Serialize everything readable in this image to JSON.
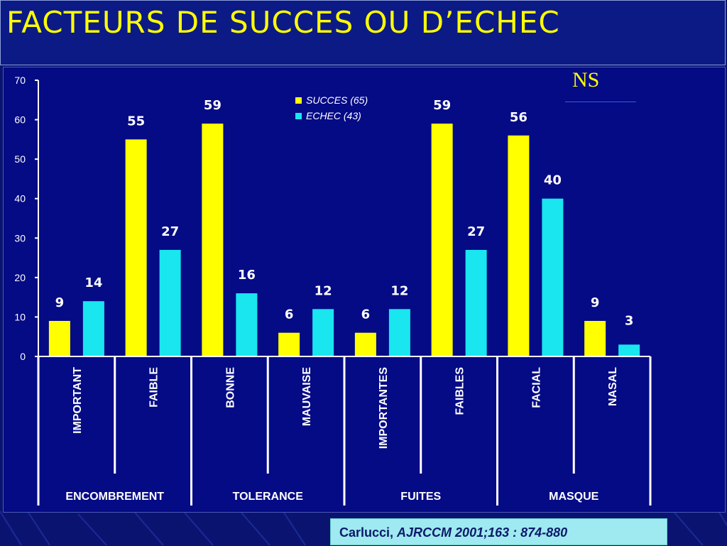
{
  "slide": {
    "title": "FACTEURS DE SUCCES OU D’ECHEC",
    "annotation": "NS",
    "citation_author": "Carlucci, ",
    "citation_ref": "AJRCCM 2001;163 : 874-880"
  },
  "colors": {
    "background": "#0a1470",
    "title": "#ffff00",
    "succes": "#ffff00",
    "echec": "#19e6ee",
    "axis": "#ffffff"
  },
  "chart_data": {
    "type": "bar",
    "title": "",
    "xlabel": "",
    "ylabel": "",
    "ylim": [
      0,
      70
    ],
    "y_ticks": [
      0,
      10,
      20,
      30,
      40,
      50,
      60,
      70
    ],
    "legend_position": "top-center",
    "categories": [
      "IMPORTANT",
      "FAIBLE",
      "BONNE",
      "MAUVAISE",
      "IMPORTANTES",
      "FAIBLES",
      "FACIAL",
      "NASAL"
    ],
    "groups": [
      {
        "label": "ENCOMBREMENT",
        "categories": [
          "IMPORTANT",
          "FAIBLE"
        ]
      },
      {
        "label": "TOLERANCE",
        "categories": [
          "BONNE",
          "MAUVAISE"
        ]
      },
      {
        "label": "FUITES",
        "categories": [
          "IMPORTANTES",
          "FAIBLES"
        ]
      },
      {
        "label": "MASQUE",
        "categories": [
          "FACIAL",
          "NASAL"
        ]
      }
    ],
    "series": [
      {
        "name": "SUCCES (65)",
        "values": [
          9,
          55,
          59,
          6,
          6,
          59,
          56,
          9
        ]
      },
      {
        "name": "ECHEC (43)",
        "values": [
          14,
          27,
          16,
          12,
          12,
          27,
          40,
          3
        ]
      }
    ]
  }
}
